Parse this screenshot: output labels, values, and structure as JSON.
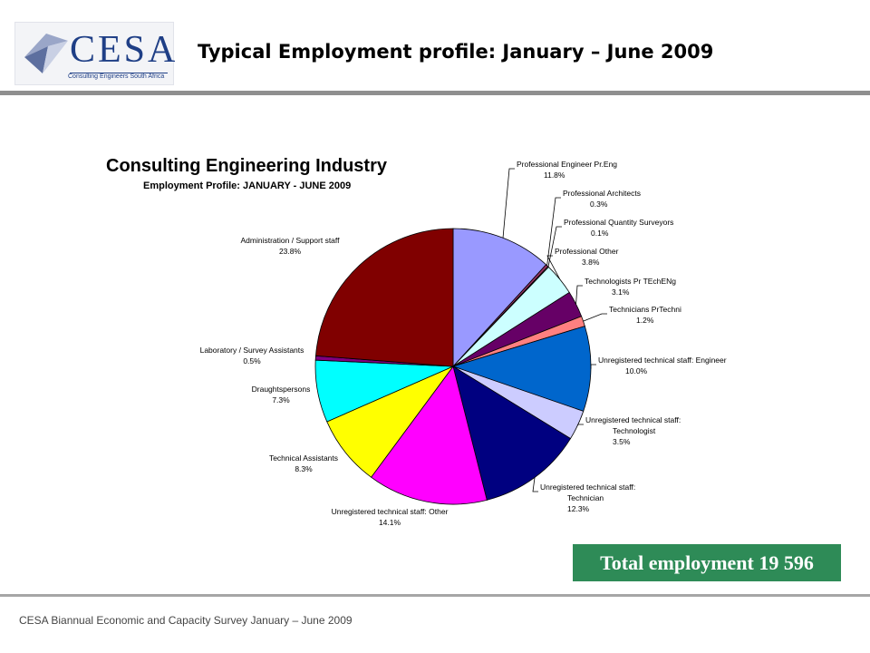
{
  "header": {
    "logo_text": "CESA",
    "logo_tagline": "Consulting Engineers South Africa",
    "title": "Typical Employment profile: January – June 2009"
  },
  "chart_data": {
    "type": "pie",
    "title": "Consulting Engineering Industry",
    "subtitle": "Employment Profile: JANUARY - JUNE 2009",
    "slices": [
      {
        "label": "Professional Engineer Pr.Eng",
        "value": 11.8,
        "pct_label": "11.8%",
        "color": "#9999ff"
      },
      {
        "label": "Professional Architects",
        "value": 0.3,
        "pct_label": "0.3%",
        "color": "#993366"
      },
      {
        "label": "Professional Quantity Surveyors",
        "value": 0.1,
        "pct_label": "0.1%",
        "color": "#ffffcc"
      },
      {
        "label": "Professional Other",
        "value": 3.8,
        "pct_label": "3.8%",
        "color": "#ccffff"
      },
      {
        "label": "Technologists Pr TEchENg",
        "value": 3.1,
        "pct_label": "3.1%",
        "color": "#660066"
      },
      {
        "label": "Technicians PrTechni",
        "value": 1.2,
        "pct_label": "1.2%",
        "color": "#ff8080"
      },
      {
        "label": "Unregistered technical staff: Engineer",
        "value": 10.0,
        "pct_label": "10.0%",
        "color": "#0066cc"
      },
      {
        "label": "Unregistered technical staff: Technologist",
        "value": 3.5,
        "pct_label": "3.5%",
        "color": "#ccccff"
      },
      {
        "label": "Unregistered technical staff: Technician",
        "value": 12.3,
        "pct_label": "12.3%",
        "color": "#000080"
      },
      {
        "label": "Unregistered technical staff: Other",
        "value": 14.1,
        "pct_label": "14.1%",
        "color": "#ff00ff"
      },
      {
        "label": "Technical Assistants",
        "value": 8.3,
        "pct_label": "8.3%",
        "color": "#ffff00"
      },
      {
        "label": "Draughtspersons",
        "value": 7.3,
        "pct_label": "7.3%",
        "color": "#00ffff"
      },
      {
        "label": "Laboratory / Survey Assistants",
        "value": 0.5,
        "pct_label": "0.5%",
        "color": "#800080"
      },
      {
        "label": "Administration / Support staff",
        "value": 23.8,
        "pct_label": "23.8%",
        "color": "#800000"
      }
    ]
  },
  "total_box": {
    "label": "Total employment 19 596"
  },
  "footer": {
    "text": "CESA Biannual Economic and Capacity Survey January – June 2009"
  }
}
